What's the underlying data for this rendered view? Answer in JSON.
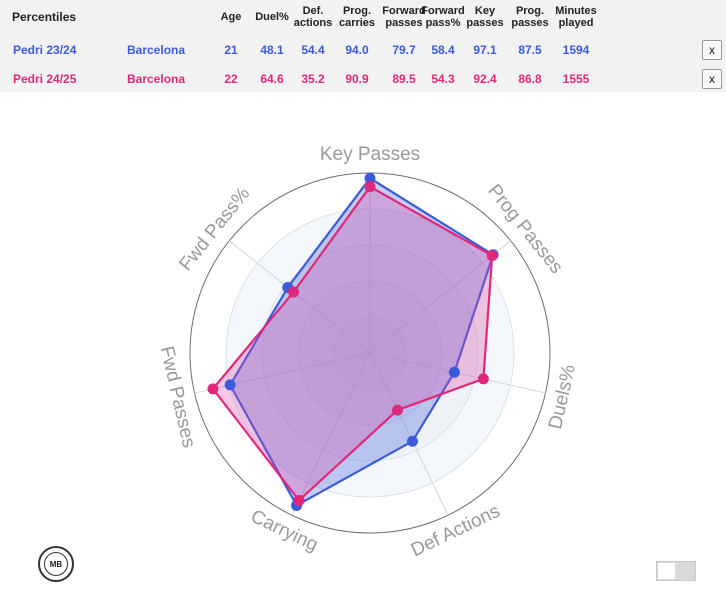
{
  "table": {
    "title": "Percentiles",
    "headers": [
      {
        "key": "age",
        "label": "Age"
      },
      {
        "key": "duel",
        "label": "Duel%"
      },
      {
        "key": "def",
        "label": "Def.\nactions"
      },
      {
        "key": "carries",
        "label": "Prog.\ncarries"
      },
      {
        "key": "fwd",
        "label": "Forward\npasses"
      },
      {
        "key": "fwdpct",
        "label": "Forward\npass%"
      },
      {
        "key": "key",
        "label": "Key\npasses"
      },
      {
        "key": "prog",
        "label": "Prog.\npasses"
      },
      {
        "key": "minutes",
        "label": "Minutes\nplayed"
      }
    ],
    "rows": [
      {
        "player": "Pedri 23/24",
        "team": "Barcelona",
        "color": "#3b5bdb",
        "values": [
          "21",
          "48.1",
          "54.4",
          "94.0",
          "79.7",
          "58.4",
          "97.1",
          "87.5",
          "1594"
        ],
        "remove_label": "x"
      },
      {
        "player": "Pedri 24/25",
        "team": "Barcelona",
        "color": "#e0287a",
        "values": [
          "22",
          "64.6",
          "35.2",
          "90.9",
          "89.5",
          "54.3",
          "92.4",
          "86.8",
          "1555"
        ],
        "remove_label": "x"
      }
    ]
  },
  "logo_text": "MB",
  "chart_data": {
    "type": "radar",
    "axes": [
      "Key Passes",
      "Prog Passes",
      "Duels%",
      "Def Actions",
      "Carrying",
      "Fwd Passes",
      "Fwd Pass%"
    ],
    "range": [
      0,
      100
    ],
    "series": [
      {
        "name": "Pedri 23/24",
        "color": "#3b5bdb",
        "fill": "#3b5bdb",
        "values": [
          97.1,
          87.5,
          48.1,
          54.4,
          94.0,
          79.7,
          58.4
        ]
      },
      {
        "name": "Pedri 24/25",
        "color": "#e0287a",
        "fill": "#d94aa6",
        "values": [
          92.4,
          86.8,
          64.6,
          35.2,
          90.9,
          89.5,
          54.3
        ]
      }
    ]
  }
}
